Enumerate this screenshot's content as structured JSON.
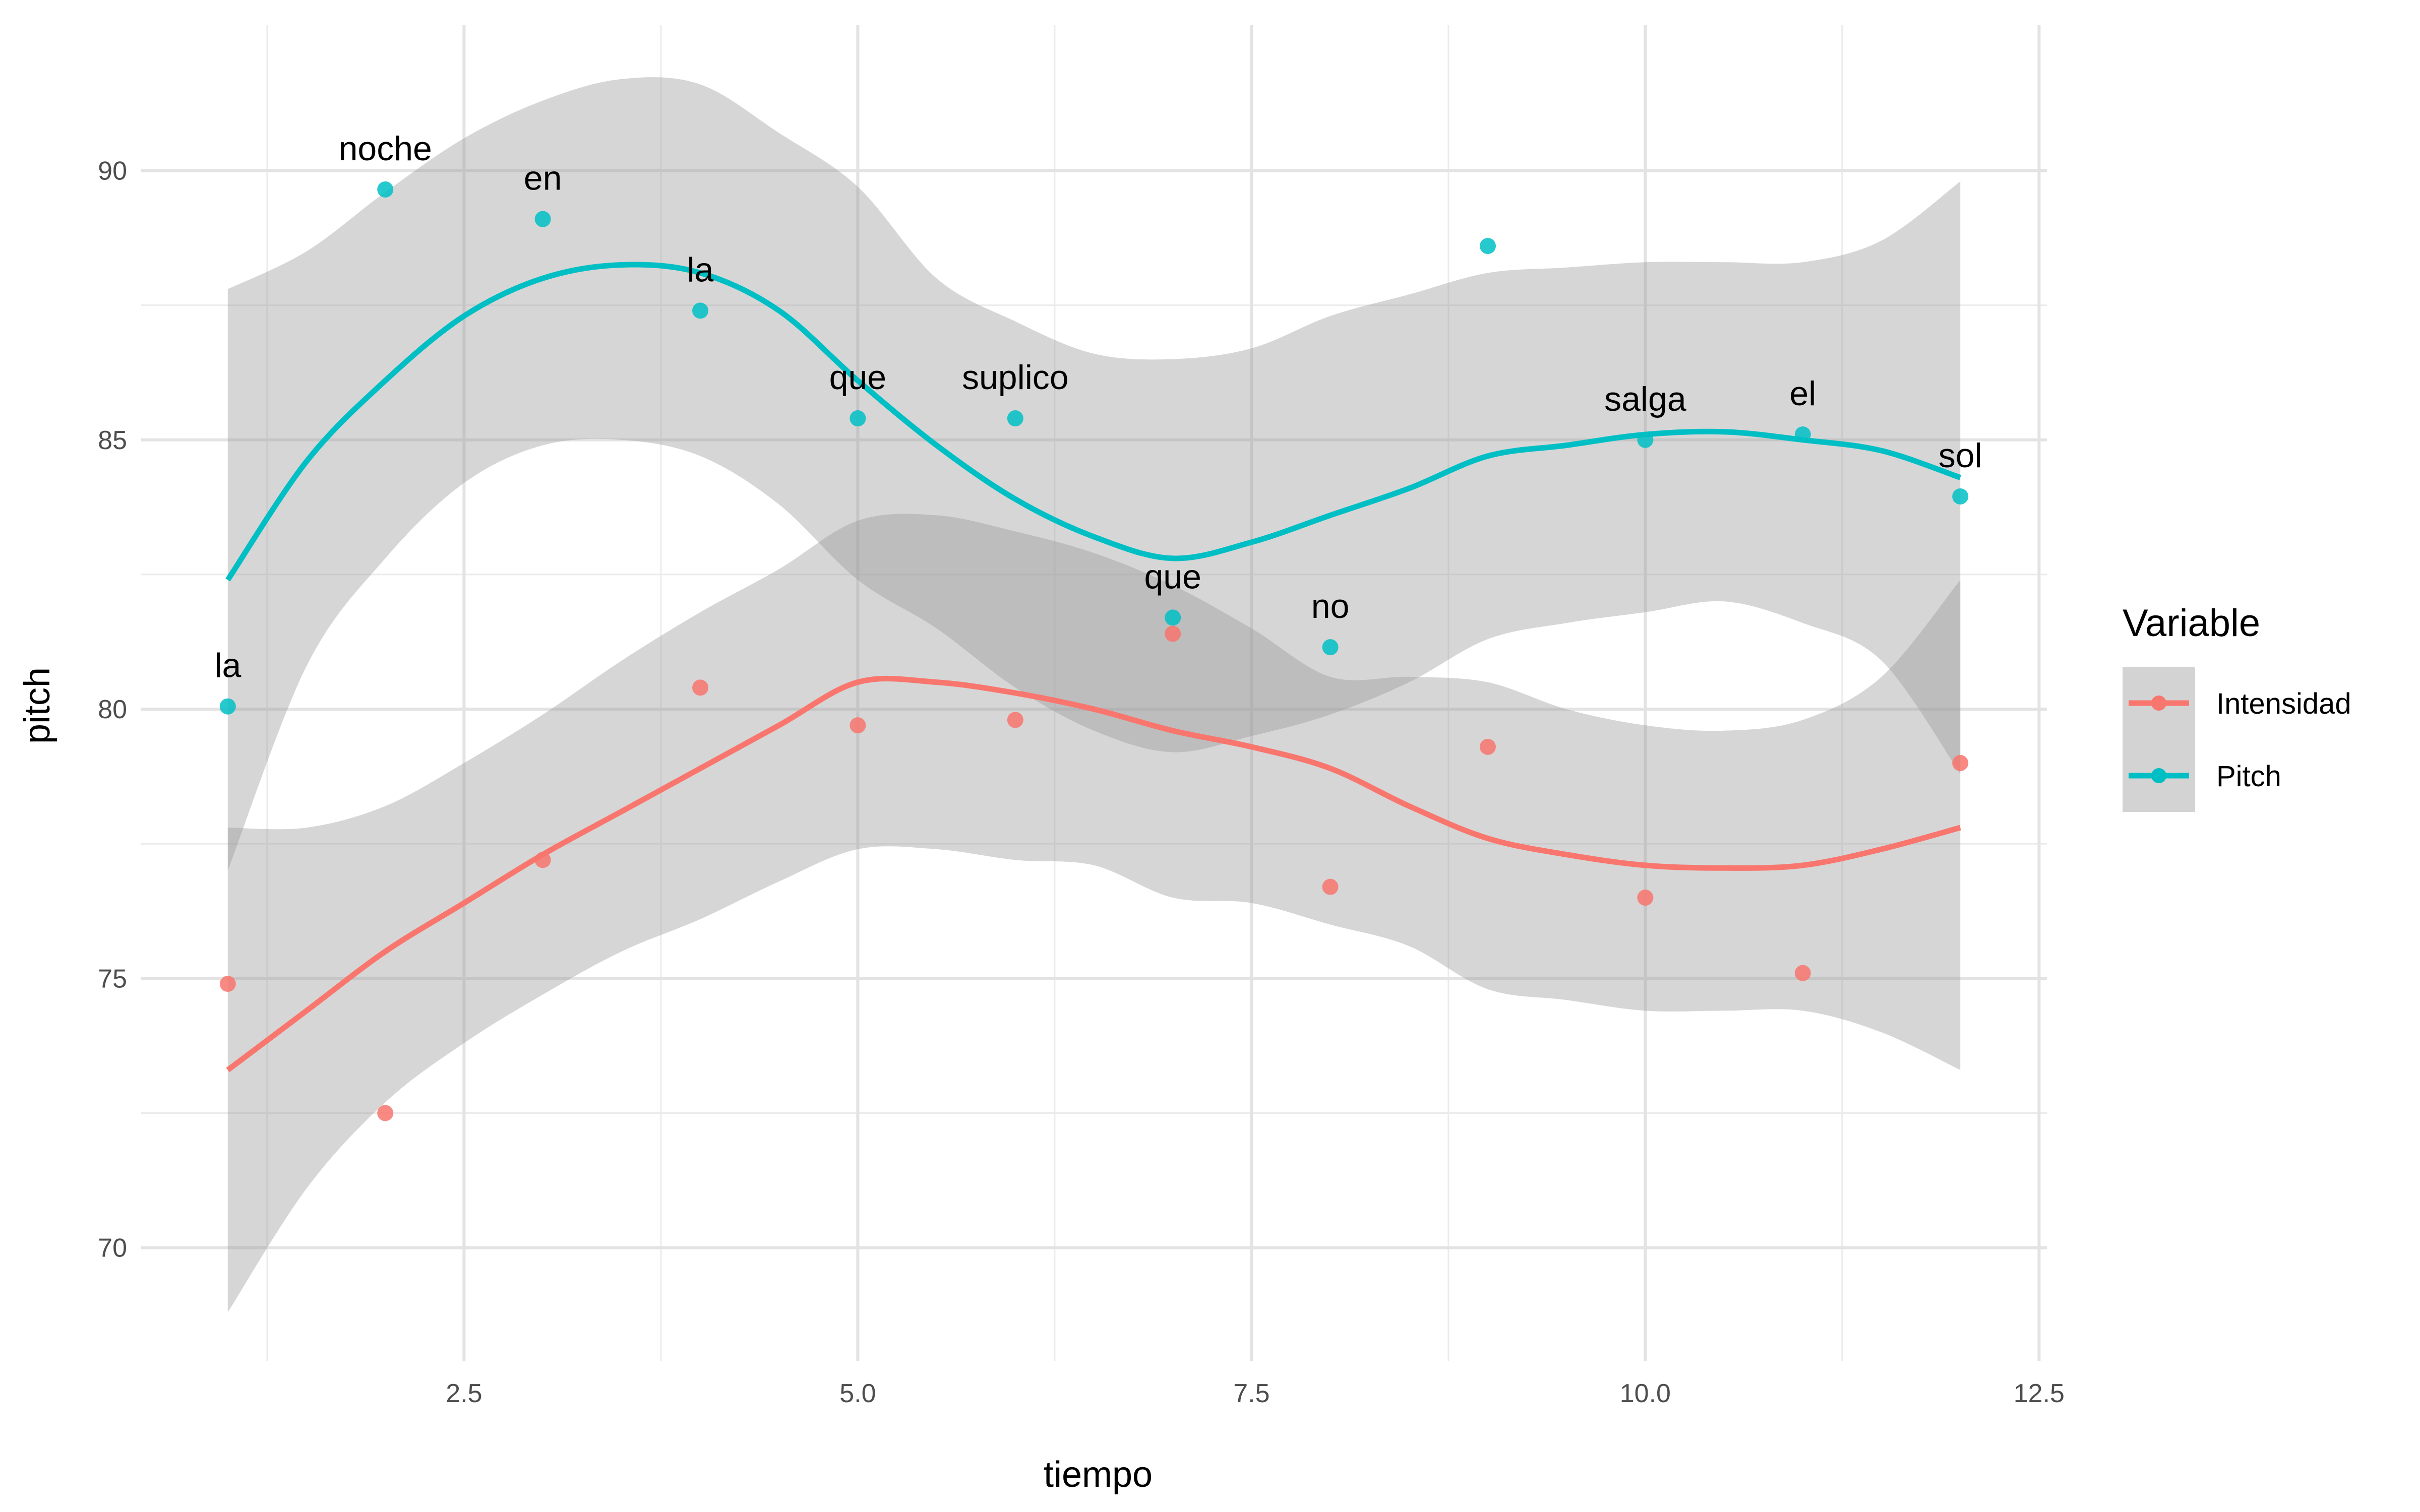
{
  "chart_data": {
    "type": "scatter",
    "title": "",
    "xlabel": "tiempo",
    "ylabel": "pitch",
    "xlim": [
      0.45,
      12.55
    ],
    "ylim": [
      67.9,
      92.7
    ],
    "x_ticks": [
      2.5,
      5.0,
      7.5,
      10.0,
      12.5
    ],
    "x_tick_labels": [
      "2.5",
      "5.0",
      "7.5",
      "10.0",
      "12.5"
    ],
    "x_minor_ticks": [
      1.25,
      3.75,
      6.25,
      8.75,
      11.25
    ],
    "y_ticks": [
      70,
      75,
      80,
      85,
      90
    ],
    "y_tick_labels": [
      "70",
      "75",
      "80",
      "85",
      "90"
    ],
    "y_minor_ticks": [
      72.5,
      77.5,
      82.5,
      87.5
    ],
    "grid": true,
    "legend": {
      "title": "Variable",
      "position": "right",
      "entries": [
        "Intensidad",
        "Pitch"
      ]
    },
    "x": [
      1,
      2,
      3,
      4,
      5,
      6,
      7,
      8,
      9,
      10,
      11,
      12
    ],
    "words": [
      "la",
      "noche",
      "en",
      "la",
      "que",
      "suplico",
      "que",
      "no",
      "",
      "salga",
      "el",
      "sol"
    ],
    "series": [
      {
        "name": "Intensidad",
        "color": "#F8766D",
        "values": [
          74.9,
          72.5,
          77.2,
          80.4,
          79.7,
          79.8,
          81.4,
          76.7,
          79.3,
          76.5,
          75.1,
          79.0
        ],
        "smooth": [
          [
            1,
            73.3
          ],
          [
            1.5,
            74.4
          ],
          [
            2,
            75.5
          ],
          [
            2.5,
            76.4
          ],
          [
            3,
            77.3
          ],
          [
            3.5,
            78.1
          ],
          [
            4,
            78.9
          ],
          [
            4.5,
            79.7
          ],
          [
            5,
            80.5
          ],
          [
            5.5,
            80.5
          ],
          [
            6,
            80.3
          ],
          [
            6.5,
            80.0
          ],
          [
            7,
            79.6
          ],
          [
            7.5,
            79.3
          ],
          [
            8,
            78.9
          ],
          [
            8.5,
            78.2
          ],
          [
            9,
            77.6
          ],
          [
            9.5,
            77.3
          ],
          [
            10,
            77.1
          ],
          [
            10.5,
            77.05
          ],
          [
            11,
            77.1
          ],
          [
            11.5,
            77.4
          ],
          [
            12,
            77.8
          ]
        ],
        "ci_upper": [
          [
            1,
            77.8
          ],
          [
            1.5,
            77.8
          ],
          [
            2,
            78.2
          ],
          [
            2.5,
            79.0
          ],
          [
            3,
            79.9
          ],
          [
            3.5,
            80.9
          ],
          [
            4,
            81.8
          ],
          [
            4.5,
            82.6
          ],
          [
            5,
            83.5
          ],
          [
            5.5,
            83.6
          ],
          [
            6,
            83.3
          ],
          [
            6.5,
            82.9
          ],
          [
            7,
            82.3
          ],
          [
            7.5,
            81.5
          ],
          [
            8,
            80.6
          ],
          [
            8.5,
            80.6
          ],
          [
            9,
            80.5
          ],
          [
            9.5,
            80.0
          ],
          [
            10,
            79.7
          ],
          [
            10.5,
            79.6
          ],
          [
            11,
            79.8
          ],
          [
            11.5,
            80.6
          ],
          [
            12,
            82.4
          ]
        ],
        "ci_lower": [
          [
            1,
            68.8
          ],
          [
            1.5,
            71.1
          ],
          [
            2,
            72.7
          ],
          [
            2.5,
            73.8
          ],
          [
            3,
            74.7
          ],
          [
            3.5,
            75.5
          ],
          [
            4,
            76.1
          ],
          [
            4.5,
            76.8
          ],
          [
            5,
            77.4
          ],
          [
            5.5,
            77.4
          ],
          [
            6,
            77.2
          ],
          [
            6.5,
            77.1
          ],
          [
            7,
            76.5
          ],
          [
            7.5,
            76.4
          ],
          [
            8,
            76.0
          ],
          [
            8.5,
            75.6
          ],
          [
            9,
            74.8
          ],
          [
            9.5,
            74.6
          ],
          [
            10,
            74.4
          ],
          [
            10.5,
            74.4
          ],
          [
            11,
            74.4
          ],
          [
            11.5,
            74.0
          ],
          [
            12,
            73.3
          ]
        ]
      },
      {
        "name": "Pitch",
        "color": "#00BFC4",
        "values": [
          80.05,
          89.65,
          89.1,
          87.4,
          85.4,
          85.4,
          81.7,
          81.15,
          88.6,
          85.0,
          85.1,
          83.95
        ],
        "smooth": [
          [
            1,
            82.4
          ],
          [
            1.5,
            84.6
          ],
          [
            2,
            86.1
          ],
          [
            2.5,
            87.3
          ],
          [
            3,
            88.0
          ],
          [
            3.5,
            88.25
          ],
          [
            4,
            88.1
          ],
          [
            4.5,
            87.4
          ],
          [
            5,
            86.1
          ],
          [
            5.5,
            84.9
          ],
          [
            6,
            83.9
          ],
          [
            6.5,
            83.2
          ],
          [
            7,
            82.8
          ],
          [
            7.5,
            83.1
          ],
          [
            8,
            83.6
          ],
          [
            8.5,
            84.1
          ],
          [
            9,
            84.7
          ],
          [
            9.5,
            84.9
          ],
          [
            10,
            85.1
          ],
          [
            10.5,
            85.15
          ],
          [
            11,
            85.0
          ],
          [
            11.5,
            84.8
          ],
          [
            12,
            84.3
          ]
        ],
        "ci_upper": [
          [
            1,
            87.8
          ],
          [
            1.5,
            88.5
          ],
          [
            2,
            89.6
          ],
          [
            2.5,
            90.6
          ],
          [
            3,
            91.3
          ],
          [
            3.5,
            91.7
          ],
          [
            4,
            91.6
          ],
          [
            4.5,
            90.7
          ],
          [
            5,
            89.7
          ],
          [
            5.5,
            88.0
          ],
          [
            6,
            87.2
          ],
          [
            6.5,
            86.6
          ],
          [
            7,
            86.5
          ],
          [
            7.5,
            86.7
          ],
          [
            8,
            87.3
          ],
          [
            8.5,
            87.7
          ],
          [
            9,
            88.1
          ],
          [
            9.5,
            88.2
          ],
          [
            10,
            88.3
          ],
          [
            10.5,
            88.3
          ],
          [
            11,
            88.3
          ],
          [
            11.5,
            88.7
          ],
          [
            12,
            89.8
          ]
        ],
        "ci_lower": [
          [
            1,
            77.0
          ],
          [
            1.5,
            80.8
          ],
          [
            2,
            82.8
          ],
          [
            2.5,
            84.2
          ],
          [
            3,
            84.9
          ],
          [
            3.5,
            85.0
          ],
          [
            4,
            84.7
          ],
          [
            4.5,
            83.8
          ],
          [
            5,
            82.4
          ],
          [
            5.5,
            81.5
          ],
          [
            6,
            80.4
          ],
          [
            6.5,
            79.6
          ],
          [
            7,
            79.2
          ],
          [
            7.5,
            79.5
          ],
          [
            8,
            79.9
          ],
          [
            8.5,
            80.5
          ],
          [
            9,
            81.3
          ],
          [
            9.5,
            81.6
          ],
          [
            10,
            81.8
          ],
          [
            10.5,
            82.0
          ],
          [
            11,
            81.6
          ],
          [
            11.5,
            80.9
          ],
          [
            12,
            78.8
          ]
        ]
      }
    ]
  }
}
